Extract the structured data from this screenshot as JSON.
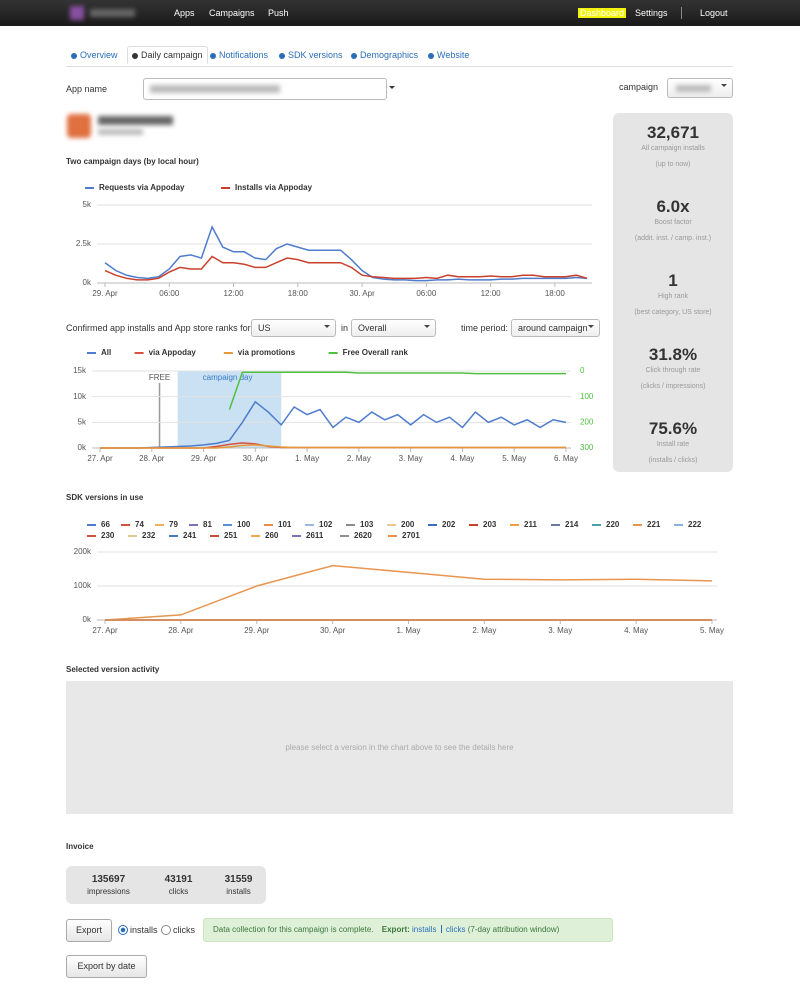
{
  "nav": {
    "left": [
      "Apps",
      "Campaigns",
      "Push"
    ],
    "right": [
      "Dashboard",
      "Settings",
      "Logout"
    ]
  },
  "tabs": [
    "Overview",
    "Daily campaign",
    "Notifications",
    "SDK versions",
    "Demographics",
    "Website"
  ],
  "form": {
    "app_name_label": "App name",
    "campaign_label": "campaign"
  },
  "stats": [
    {
      "value": "32,671",
      "label": "All campaign installs",
      "note": "(up to now)"
    },
    {
      "value": "6.0x",
      "label": "Boost factor",
      "note": "(addit. inst. / camp. inst.)"
    },
    {
      "value": "1",
      "label": "High rank",
      "note": "(best category, US store)"
    },
    {
      "value": "31.8%",
      "label": "Click through rate",
      "note": "(clicks / impressions)"
    },
    {
      "value": "75.6%",
      "label": "Install rate",
      "note": "(installs / clicks)"
    }
  ],
  "filters": {
    "prefix": "Confirmed app installs and App store ranks for",
    "country": "US",
    "in": "in",
    "rank": "Overall",
    "period_label": "time period:",
    "period": "around campaign"
  },
  "chart_data": [
    {
      "type": "line",
      "title": "Two campaign days (by local hour)",
      "categories": [
        "29. Apr",
        null,
        null,
        null,
        null,
        null,
        "06:00",
        null,
        null,
        null,
        null,
        null,
        "12:00",
        null,
        null,
        null,
        null,
        null,
        "18:00",
        null,
        null,
        null,
        null,
        null,
        "30. Apr",
        null,
        null,
        null,
        null,
        null,
        "06:00",
        null,
        null,
        null,
        null,
        null,
        "12:00",
        null,
        null,
        null,
        null,
        null,
        "18:00",
        null,
        null,
        null
      ],
      "series": [
        {
          "name": "Requests via Appoday",
          "color": "#4f7ccc",
          "values": [
            1300,
            800,
            500,
            350,
            300,
            400,
            900,
            1700,
            1800,
            1600,
            3600,
            2300,
            2000,
            2000,
            1600,
            1500,
            2200,
            2500,
            2300,
            2100,
            2100,
            2100,
            2100,
            1500,
            800,
            350,
            250,
            200,
            200,
            150,
            150,
            200,
            200,
            250,
            200,
            200,
            200,
            250,
            250,
            300,
            300,
            300,
            300,
            300,
            350,
            300
          ]
        },
        {
          "name": "Installs via Appoday",
          "color": "#c9412c",
          "values": [
            800,
            500,
            300,
            200,
            200,
            300,
            700,
            1000,
            900,
            900,
            1700,
            1300,
            1300,
            1200,
            1000,
            1000,
            1300,
            1600,
            1500,
            1300,
            1300,
            1300,
            1300,
            1000,
            500,
            400,
            350,
            300,
            300,
            300,
            350,
            300,
            500,
            400,
            400,
            400,
            450,
            400,
            400,
            500,
            500,
            400,
            400,
            400,
            500,
            300
          ]
        }
      ],
      "ylim": [
        0,
        5000
      ],
      "yticks": [
        {
          "value": 0,
          "label": "0k"
        },
        {
          "value": 2500,
          "label": "2.5k"
        },
        {
          "value": 5000,
          "label": "5k"
        }
      ],
      "grid": true
    },
    {
      "type": "line",
      "categories": [
        "27. Apr",
        null,
        null,
        null,
        "28. Apr",
        null,
        null,
        null,
        "29. Apr",
        null,
        null,
        null,
        "30. Apr",
        null,
        null,
        null,
        "1. May",
        null,
        null,
        null,
        "2. May",
        null,
        null,
        null,
        "3. May",
        null,
        null,
        null,
        "4. May",
        null,
        null,
        null,
        "5. May",
        null,
        null,
        null,
        "6. May"
      ],
      "series": [
        {
          "name": "All",
          "color": "#4f7ccc",
          "values": [
            0,
            0,
            0,
            0,
            100,
            200,
            300,
            400,
            600,
            900,
            1500,
            5000,
            9000,
            7000,
            4500,
            8000,
            6500,
            7500,
            4000,
            6000,
            5000,
            7000,
            5500,
            6500,
            4500,
            6500,
            5000,
            6000,
            4000,
            7000,
            5000,
            6000,
            4500,
            5500,
            4000,
            5500,
            5000
          ]
        },
        {
          "name": "via Appoday",
          "color": "#d9523e",
          "values": [
            0,
            0,
            0,
            0,
            0,
            0,
            0,
            0,
            0,
            300,
            700,
            1000,
            800,
            300,
            100,
            100,
            100,
            100,
            100,
            100,
            100,
            100,
            100,
            100,
            100,
            100,
            100,
            100,
            100,
            100,
            100,
            100,
            100,
            100,
            100,
            100,
            100
          ]
        },
        {
          "name": "via promotions",
          "color": "#e59a3a",
          "values": [
            0,
            0,
            0,
            0,
            0,
            0,
            0,
            0,
            0,
            0,
            200,
            500,
            600,
            400,
            200,
            100,
            100,
            100,
            100,
            100,
            100,
            100,
            100,
            100,
            100,
            100,
            100,
            100,
            100,
            100,
            100,
            100,
            100,
            100,
            100,
            100,
            100
          ]
        },
        {
          "name": "Free Overall rank",
          "color": "#50c040",
          "axis": "y2",
          "values": [
            null,
            null,
            null,
            null,
            null,
            null,
            null,
            null,
            null,
            null,
            150,
            5,
            5,
            5,
            5,
            5,
            5,
            5,
            5,
            5,
            8,
            8,
            8,
            8,
            8,
            8,
            8,
            8,
            8,
            10,
            10,
            10,
            10,
            10,
            10,
            10,
            10
          ]
        }
      ],
      "ylim": [
        0,
        15000
      ],
      "yticks": [
        {
          "value": 0,
          "label": "0k"
        },
        {
          "value": 5000,
          "label": "5k"
        },
        {
          "value": 10000,
          "label": "10k"
        },
        {
          "value": 15000,
          "label": "15k"
        }
      ],
      "y2lim": [
        0,
        300
      ],
      "y2ticks": [
        0,
        100,
        200,
        300
      ],
      "y2_reversed": true,
      "y2_color": "#50c040",
      "grid": true,
      "plot_line": {
        "label": "FREE",
        "at": 4.6
      },
      "plot_band": {
        "label": "campaign day",
        "from": 6,
        "to": 14
      }
    },
    {
      "type": "line",
      "title": "SDK versions in use",
      "categories": [
        "27. Apr",
        "28. Apr",
        "29. Apr",
        "30. Apr",
        "1. May",
        "2. May",
        "3. May",
        "4. May",
        "5. May"
      ],
      "series": [
        {
          "name": "66",
          "color": "#4f7ccc",
          "values": [
            0,
            0,
            0,
            0,
            0,
            0,
            0,
            0,
            0
          ]
        },
        {
          "name": "74",
          "color": "#d9523e",
          "values": [
            0,
            0,
            0,
            0,
            0,
            0,
            0,
            0,
            0
          ]
        },
        {
          "name": "79",
          "color": "#f0b060",
          "values": [
            0,
            0,
            0,
            0,
            0,
            0,
            0,
            0,
            0
          ]
        },
        {
          "name": "81",
          "color": "#7a70c0",
          "values": [
            0,
            0,
            0,
            0,
            0,
            0,
            0,
            0,
            0
          ]
        },
        {
          "name": "100",
          "color": "#5b8fd6",
          "values": [
            0,
            0,
            0,
            0,
            0,
            0,
            0,
            0,
            0
          ]
        },
        {
          "name": "101",
          "color": "#e88a4a",
          "values": [
            0,
            0,
            0,
            0,
            0,
            0,
            0,
            0,
            0
          ]
        },
        {
          "name": "102",
          "color": "#9ab8e0",
          "values": [
            0,
            0,
            0,
            0,
            0,
            0,
            0,
            0,
            0
          ]
        },
        {
          "name": "103",
          "color": "#8a8a8a",
          "values": [
            0,
            0,
            0,
            0,
            0,
            0,
            0,
            0,
            0
          ]
        },
        {
          "name": "200",
          "color": "#e8c890",
          "values": [
            0,
            0,
            0,
            0,
            0,
            0,
            0,
            0,
            0
          ]
        },
        {
          "name": "202",
          "color": "#3a6cc0",
          "values": [
            0,
            0,
            0,
            0,
            0,
            0,
            0,
            0,
            0
          ]
        },
        {
          "name": "203",
          "color": "#c9412c",
          "values": [
            0,
            0,
            0,
            0,
            0,
            0,
            0,
            0,
            0
          ]
        },
        {
          "name": "211",
          "color": "#f0a040",
          "values": [
            0,
            0,
            0,
            0,
            0,
            0,
            0,
            0,
            0
          ]
        },
        {
          "name": "214",
          "color": "#6a7a9a",
          "values": [
            0,
            0,
            0,
            0,
            0,
            0,
            0,
            0,
            0
          ]
        },
        {
          "name": "220",
          "color": "#4aa0b0",
          "values": [
            0,
            0,
            0,
            0,
            0,
            0,
            0,
            0,
            0
          ]
        },
        {
          "name": "221",
          "color": "#e8964f",
          "values": [
            0,
            15000,
            100000,
            160000,
            140000,
            120000,
            118000,
            120000,
            115000
          ]
        },
        {
          "name": "222",
          "color": "#8ab0e0",
          "values": [
            0,
            0,
            0,
            0,
            0,
            0,
            0,
            0,
            0
          ]
        },
        {
          "name": "230",
          "color": "#d05040",
          "values": [
            0,
            0,
            0,
            0,
            0,
            0,
            0,
            0,
            0
          ]
        },
        {
          "name": "232",
          "color": "#e0c898",
          "values": [
            0,
            0,
            0,
            0,
            0,
            0,
            0,
            0,
            0
          ]
        },
        {
          "name": "241",
          "color": "#4878c8",
          "values": [
            0,
            0,
            0,
            0,
            0,
            0,
            0,
            0,
            0
          ]
        },
        {
          "name": "251",
          "color": "#d04838",
          "values": [
            0,
            0,
            0,
            0,
            0,
            0,
            0,
            0,
            0
          ]
        },
        {
          "name": "260",
          "color": "#f0a850",
          "values": [
            0,
            0,
            0,
            0,
            0,
            0,
            0,
            0,
            0
          ]
        },
        {
          "name": "2611",
          "color": "#8070b8",
          "values": [
            0,
            0,
            0,
            0,
            0,
            0,
            0,
            0,
            0
          ]
        },
        {
          "name": "2620",
          "color": "#909090",
          "values": [
            0,
            0,
            0,
            0,
            0,
            0,
            0,
            0,
            0
          ]
        },
        {
          "name": "2701",
          "color": "#e89050",
          "values": [
            0,
            0,
            0,
            0,
            0,
            0,
            0,
            0,
            0
          ]
        }
      ],
      "ylim": [
        0,
        200000
      ],
      "yticks": [
        {
          "value": 0,
          "label": "0k"
        },
        {
          "value": 100000,
          "label": "100k"
        },
        {
          "value": 200000,
          "label": "200k"
        }
      ],
      "grid": true
    }
  ],
  "activity": {
    "title": "Selected version activity",
    "placeholder": "please select a version in the chart above to see the details here"
  },
  "invoice": {
    "title": "Invoice",
    "items": [
      {
        "value": 135697,
        "label": "impressions"
      },
      {
        "value": 43191,
        "label": "clicks"
      },
      {
        "value": 31559,
        "label": "installs"
      }
    ]
  },
  "export": {
    "button": "Export",
    "options": [
      "installs",
      "clicks"
    ],
    "message": {
      "text": "Data collection for this campaign is complete.",
      "export_label": "Export:",
      "link1": "installs",
      "link2": "clicks",
      "note": "(7-day attribution window)"
    },
    "button2": "Export by date"
  }
}
